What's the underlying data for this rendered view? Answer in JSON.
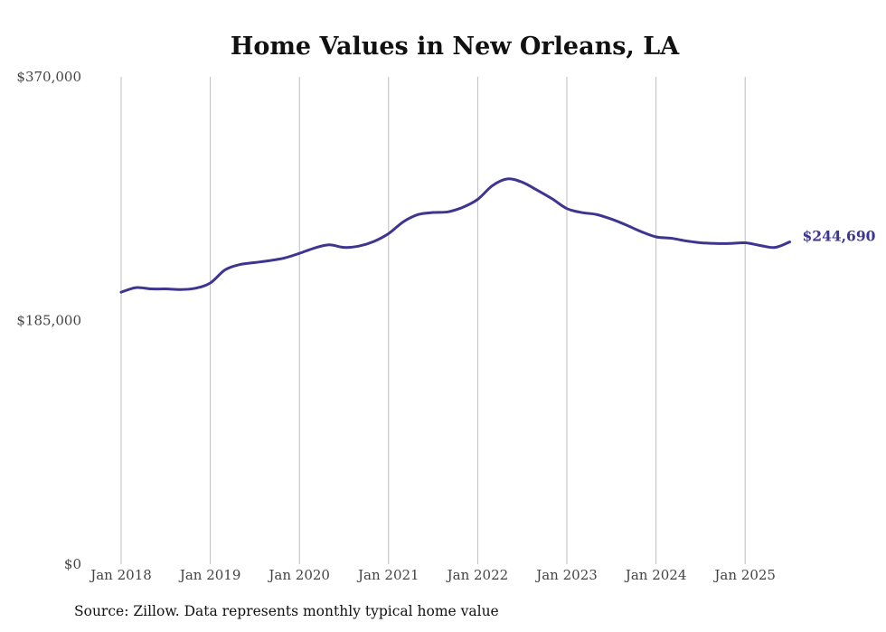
{
  "chart_data": {
    "type": "line",
    "title": "Home Values in New Orleans, LA",
    "xlabel": "",
    "ylabel": "",
    "ylim": [
      0,
      370000
    ],
    "yticks": [
      0,
      185000,
      370000
    ],
    "ytick_labels": [
      "$0",
      "$185,000",
      "$370,000"
    ],
    "x_ticks": [
      "2018-01",
      "2019-01",
      "2020-01",
      "2021-01",
      "2022-01",
      "2023-01",
      "2024-01",
      "2025-01"
    ],
    "x_tick_labels": [
      "Jan 2018",
      "Jan 2019",
      "Jan 2020",
      "Jan 2021",
      "Jan 2022",
      "Jan 2023",
      "Jan 2024",
      "Jan 2025"
    ],
    "grid": "vertical",
    "line_color": "#3d3590",
    "end_label": "$244,690",
    "series": [
      {
        "x": [
          "2018-01",
          "2018-03",
          "2018-05",
          "2018-07",
          "2018-09",
          "2018-11",
          "2019-01",
          "2019-03",
          "2019-05",
          "2019-07",
          "2019-09",
          "2019-11",
          "2020-01",
          "2020-03",
          "2020-05",
          "2020-07",
          "2020-09",
          "2020-11",
          "2021-01",
          "2021-03",
          "2021-05",
          "2021-07",
          "2021-09",
          "2021-11",
          "2022-01",
          "2022-03",
          "2022-05",
          "2022-07",
          "2022-09",
          "2022-11",
          "2023-01",
          "2023-03",
          "2023-05",
          "2023-07",
          "2023-09",
          "2023-11",
          "2024-01",
          "2024-03",
          "2024-05",
          "2024-07",
          "2024-09",
          "2024-11",
          "2025-01",
          "2025-03",
          "2025-05",
          "2025-07"
        ],
        "values": [
          206500,
          210000,
          209000,
          209000,
          208500,
          209500,
          213500,
          223500,
          227500,
          229000,
          230500,
          232500,
          236000,
          240000,
          242500,
          240500,
          241500,
          245000,
          251000,
          260000,
          265500,
          267000,
          267500,
          271000,
          277000,
          287500,
          292500,
          290000,
          284000,
          277500,
          270000,
          267000,
          265500,
          262000,
          257500,
          252500,
          248500,
          247500,
          245500,
          244000,
          243500,
          243500,
          244000,
          242000,
          240500,
          244690
        ]
      }
    ]
  },
  "source_note": "Source: Zillow. Data represents monthly typical home value"
}
